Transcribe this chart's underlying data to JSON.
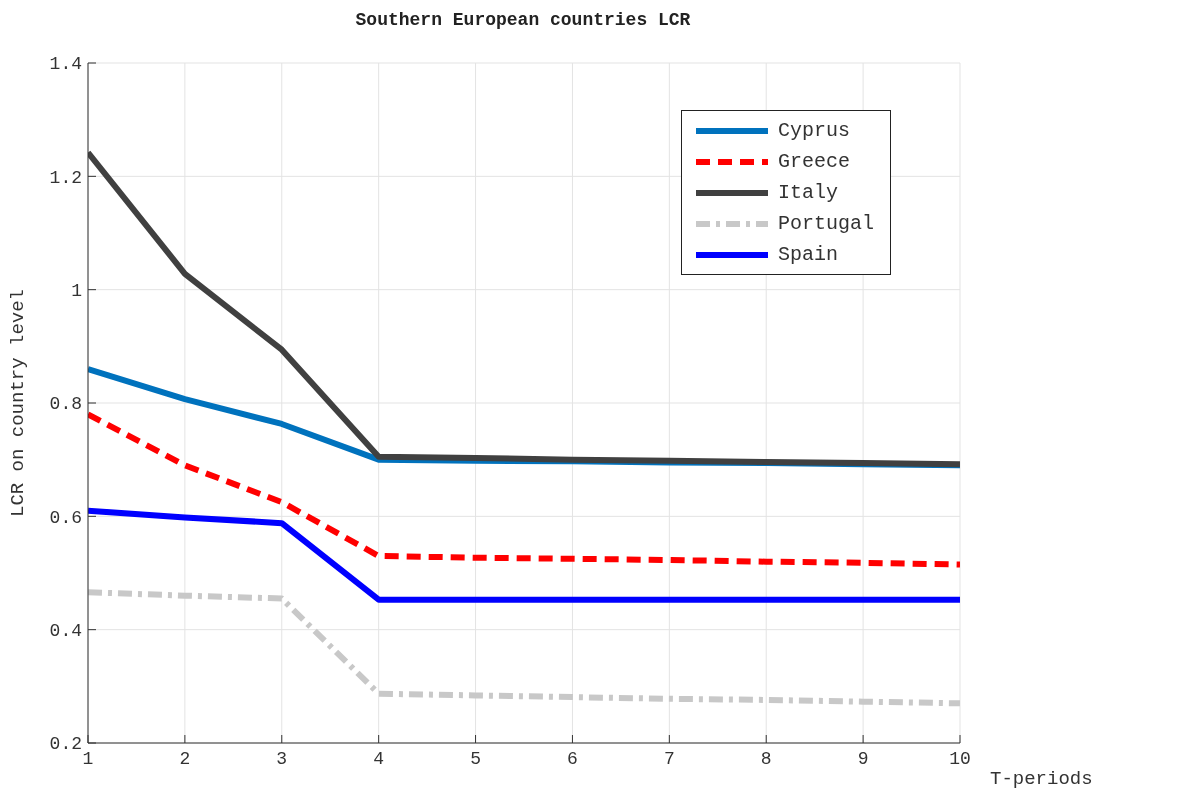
{
  "chart_data": {
    "type": "line",
    "title": "Southern European countries LCR",
    "xlabel": "T-periods",
    "ylabel": "LCR on country level",
    "x": [
      1,
      2,
      3,
      4,
      5,
      6,
      7,
      8,
      9,
      10
    ],
    "series": [
      {
        "name": "Cyprus",
        "color": "#0072bd",
        "line_style": "solid",
        "values": [
          0.86,
          0.807,
          0.763,
          0.7,
          0.698,
          0.697,
          0.695,
          0.694,
          0.692,
          0.69
        ]
      },
      {
        "name": "Greece",
        "color": "#ff0000",
        "line_style": "dashed",
        "values": [
          0.78,
          0.69,
          0.625,
          0.53,
          0.527,
          0.525,
          0.523,
          0.52,
          0.518,
          0.515
        ]
      },
      {
        "name": "Italy",
        "color": "#404040",
        "line_style": "solid",
        "values": [
          1.242,
          1.028,
          0.894,
          0.705,
          0.703,
          0.7,
          0.698,
          0.696,
          0.694,
          0.692
        ]
      },
      {
        "name": "Portugal",
        "color": "#c8c8c8",
        "line_style": "dashdot",
        "values": [
          0.466,
          0.46,
          0.455,
          0.287,
          0.284,
          0.281,
          0.278,
          0.276,
          0.273,
          0.27
        ]
      },
      {
        "name": "Spain",
        "color": "#0000ff",
        "line_style": "solid",
        "values": [
          0.61,
          0.598,
          0.588,
          0.453,
          0.453,
          0.453,
          0.453,
          0.453,
          0.453,
          0.453
        ]
      }
    ],
    "xlim": [
      1,
      10
    ],
    "xticks": [
      1,
      2,
      3,
      4,
      5,
      6,
      7,
      8,
      9,
      10
    ],
    "ylim": [
      0.2,
      1.4
    ],
    "yticks": [
      0.2,
      0.4,
      0.6,
      0.8,
      1,
      1.2,
      1.4
    ],
    "grid": true,
    "legend": "top right",
    "marker": "none"
  }
}
